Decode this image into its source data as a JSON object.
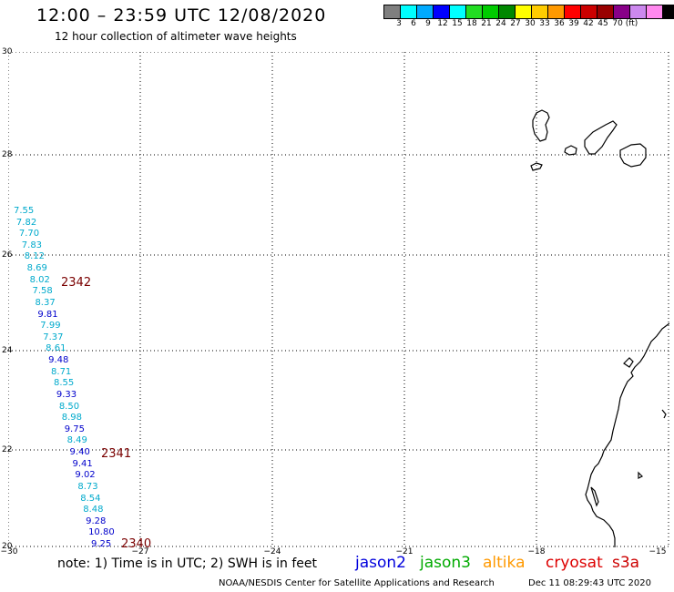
{
  "header": {
    "title": "12:00 – 23:59 UTC 12/08/2020",
    "subtitle": "12 hour collection of altimeter wave heights"
  },
  "scale": {
    "colors": [
      "#7f7f7f",
      "#00ffff",
      "#00aaff",
      "#0000ff",
      "#00ffff",
      "#22dd22",
      "#00cc00",
      "#008800",
      "#ffff00",
      "#ffcc00",
      "#ff9900",
      "#ff0000",
      "#cc0000",
      "#990000",
      "#880088",
      "#cc88ee",
      "#ff88ee",
      "#000000"
    ],
    "labels": [
      "3",
      "6",
      "9",
      "12",
      "15",
      "18",
      "21",
      "24",
      "27",
      "30",
      "33",
      "36",
      "39",
      "42",
      "45",
      "70 (ft)"
    ]
  },
  "axes": {
    "y_labels": [
      "30",
      "28",
      "26",
      "24",
      "22",
      "20"
    ],
    "x_labels": [
      "−30",
      "−27",
      "−24",
      "−21",
      "−18",
      "−15"
    ]
  },
  "waves": [
    {
      "v": "7.55",
      "c": "#00aacc"
    },
    {
      "v": "7.82",
      "c": "#00aacc"
    },
    {
      "v": "7.70",
      "c": "#00aacc"
    },
    {
      "v": "7.83",
      "c": "#00aacc"
    },
    {
      "v": "8.12",
      "c": "#00aacc"
    },
    {
      "v": "8.69",
      "c": "#00aacc"
    },
    {
      "v": "8.02",
      "c": "#00aacc"
    },
    {
      "v": "7.58",
      "c": "#00aacc"
    },
    {
      "v": "8.37",
      "c": "#00aacc"
    },
    {
      "v": "9.81",
      "c": "#0000cc"
    },
    {
      "v": "7.99",
      "c": "#00aacc"
    },
    {
      "v": "7.37",
      "c": "#00aacc"
    },
    {
      "v": "8.61",
      "c": "#00aacc"
    },
    {
      "v": "9.48",
      "c": "#0000cc"
    },
    {
      "v": "8.71",
      "c": "#00aacc"
    },
    {
      "v": "8.55",
      "c": "#00aacc"
    },
    {
      "v": "9.33",
      "c": "#0000cc"
    },
    {
      "v": "8.50",
      "c": "#00aacc"
    },
    {
      "v": "8.98",
      "c": "#00aacc"
    },
    {
      "v": "9.75",
      "c": "#0000cc"
    },
    {
      "v": "8.49",
      "c": "#00aacc"
    },
    {
      "v": "9.40",
      "c": "#0000cc"
    },
    {
      "v": "9.41",
      "c": "#0000cc"
    },
    {
      "v": "9.02",
      "c": "#0000cc"
    },
    {
      "v": "8.73",
      "c": "#00aacc"
    },
    {
      "v": "8.54",
      "c": "#00aacc"
    },
    {
      "v": "8.48",
      "c": "#00aacc"
    },
    {
      "v": "9.28",
      "c": "#0000cc"
    },
    {
      "v": "10.80",
      "c": "#0000cc"
    },
    {
      "v": "9.25",
      "c": "#0000cc"
    }
  ],
  "passes": [
    "2342",
    "2341",
    "2340"
  ],
  "footer": {
    "note": "note:  1) Time is in UTC;  2) SWH is in feet",
    "satellites": [
      {
        "name": "jason2",
        "color": "#0000dd"
      },
      {
        "name": "jason3",
        "color": "#00aa00"
      },
      {
        "name": "altika",
        "color": "#ff9900"
      },
      {
        "name": "cryosat",
        "color": "#dd0000"
      },
      {
        "name": "s3a",
        "color": "#cc0000"
      }
    ],
    "credit": "NOAA/NESDIS Center for Satellite Applications and Research",
    "timestamp": "Dec 11 08:29:43 UTC 2020"
  }
}
